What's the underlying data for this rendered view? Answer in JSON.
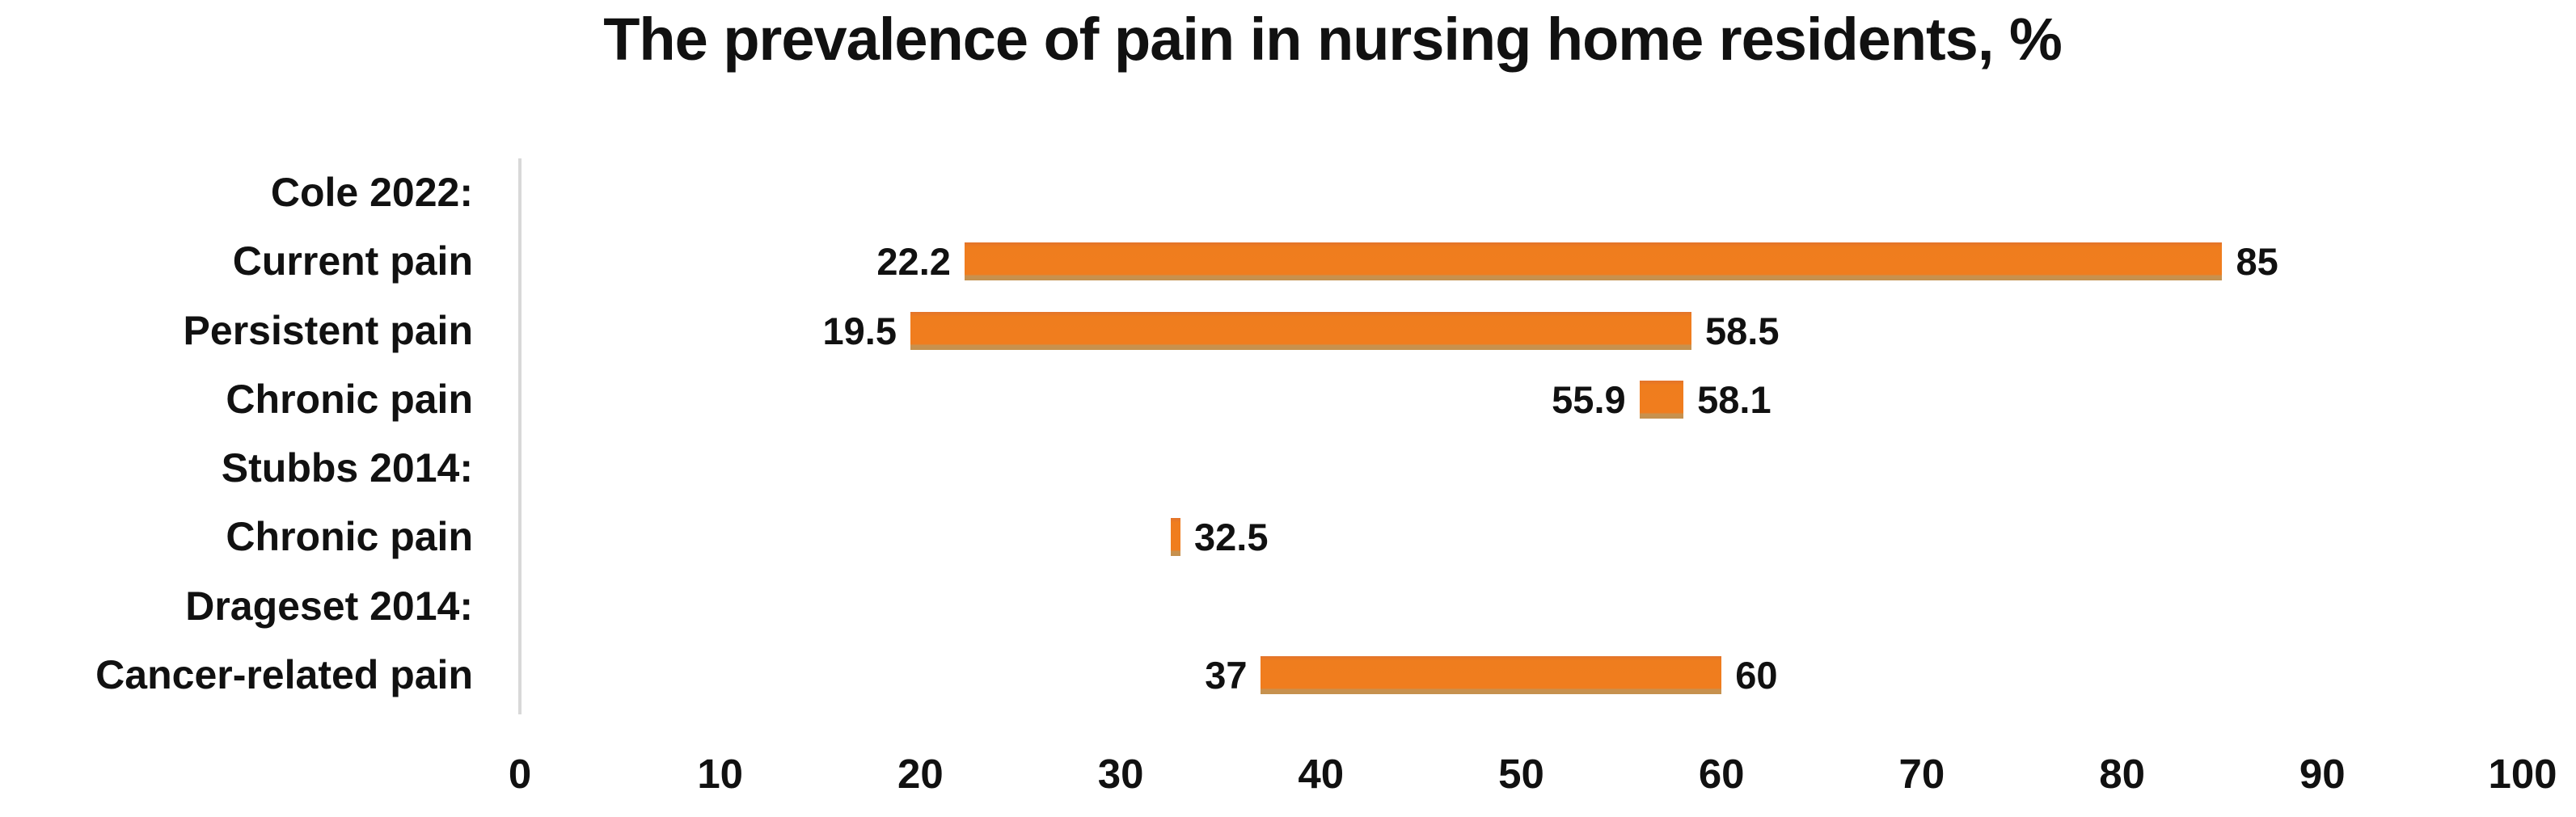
{
  "chart": {
    "bar_color": "#EF7D1E",
    "bar_bottom_edge_color": "#C4914E",
    "axis_line_color": "#D8D8D8",
    "text_color": "#111111",
    "background_color": "#FFFFFF"
  },
  "chart_data": {
    "type": "bar",
    "orientation": "horizontal",
    "bar_style": "floating-range",
    "title": "The prevalence of pain in nursing home residents, %",
    "xlabel": "",
    "ylabel": "",
    "xlim": [
      0,
      100
    ],
    "x_ticks": [
      0,
      10,
      20,
      30,
      40,
      50,
      60,
      70,
      80,
      90,
      100
    ],
    "x_tick_labels": [
      "0",
      "10",
      "20",
      "30",
      "40",
      "50",
      "60",
      "70",
      "80",
      "90",
      "100"
    ],
    "grid": false,
    "legend": false,
    "rows": [
      {
        "label": "Cole 2022:",
        "type": "group-header"
      },
      {
        "label": "Current pain",
        "type": "range-bar",
        "low": 22.2,
        "high": 85,
        "low_label": "22.2",
        "high_label": "85"
      },
      {
        "label": "Persistent pain",
        "type": "range-bar",
        "low": 19.5,
        "high": 58.5,
        "low_label": "19.5",
        "high_label": "58.5"
      },
      {
        "label": "Chronic pain",
        "type": "range-bar",
        "low": 55.9,
        "high": 58.1,
        "low_label": "55.9",
        "high_label": "58.1"
      },
      {
        "label": "Stubbs 2014:",
        "type": "group-header"
      },
      {
        "label": "Chronic pain",
        "type": "single-value",
        "low": 32.5,
        "high": 32.5,
        "high_label": "32.5"
      },
      {
        "label": "Drageset 2014:",
        "type": "group-header"
      },
      {
        "label": "Cancer-related pain",
        "type": "range-bar",
        "low": 37,
        "high": 60,
        "low_label": "37",
        "high_label": "60"
      }
    ]
  }
}
